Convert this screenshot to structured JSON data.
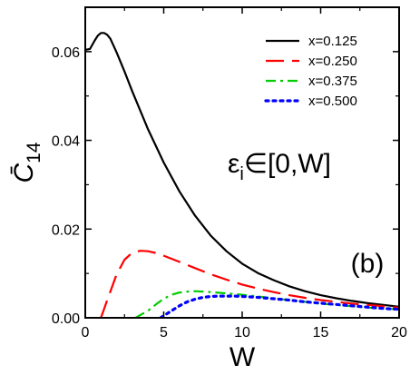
{
  "chart_data": {
    "type": "line",
    "xlabel": "W",
    "ylabel": "C̄",
    "ylabel_subscript": "14",
    "xlim": [
      0,
      20
    ],
    "ylim": [
      0,
      0.07
    ],
    "x_ticks": [
      0,
      5,
      10,
      15,
      20
    ],
    "x_tick_labels": [
      "0",
      "5",
      "10",
      "15",
      "20"
    ],
    "y_ticks": [
      0,
      0.02,
      0.04,
      0.06
    ],
    "y_tick_labels": [
      "0.00",
      "0.02",
      "0.04",
      "0.06"
    ],
    "grid": false,
    "legend_position": "top-right",
    "annotations": {
      "epsilon": {
        "base": "ε",
        "sub": "i",
        "rest": "∈[0,W]"
      },
      "panel": "(b)"
    },
    "series": [
      {
        "name": "x=0.125",
        "color": "#000000",
        "dash": "solid",
        "x": [
          0,
          0.3,
          0.6,
          0.8,
          1.0,
          1.2,
          1.4,
          1.6,
          2.0,
          2.5,
          3.0,
          4.0,
          5.0,
          6.0,
          7.0,
          8.0,
          9.0,
          10.0,
          11.0,
          12.0,
          13.0,
          14.0,
          15.0,
          16.0,
          17.0,
          18.0,
          19.0,
          20.0
        ],
        "y": [
          0.0604,
          0.0606,
          0.0625,
          0.0636,
          0.0642,
          0.0642,
          0.0638,
          0.0629,
          0.0598,
          0.0555,
          0.051,
          0.0425,
          0.035,
          0.0285,
          0.023,
          0.0185,
          0.015,
          0.0122,
          0.0101,
          0.0085,
          0.0071,
          0.006,
          0.0051,
          0.0044,
          0.0038,
          0.0033,
          0.0029,
          0.0025
        ]
      },
      {
        "name": "x=0.250",
        "color": "#ff0000",
        "dash": "long-dash",
        "x": [
          1.0,
          1.5,
          2.0,
          2.5,
          3.0,
          3.5,
          4.0,
          4.5,
          5.0,
          6.0,
          7.0,
          8.0,
          9.0,
          10.0,
          11.0,
          12.0,
          13.0,
          14.0,
          15.0,
          16.0,
          17.0,
          18.0,
          19.0,
          20.0
        ],
        "y": [
          0.0,
          0.005,
          0.0098,
          0.0131,
          0.0147,
          0.0151,
          0.015,
          0.0146,
          0.014,
          0.0126,
          0.0112,
          0.0098,
          0.0086,
          0.0075,
          0.0066,
          0.0058,
          0.0051,
          0.0045,
          0.004,
          0.0036,
          0.0032,
          0.0029,
          0.0026,
          0.0023
        ]
      },
      {
        "name": "x=0.375",
        "color": "#00cc00",
        "dash": "dash-dot",
        "x": [
          3.2,
          4.0,
          4.5,
          5.0,
          5.5,
          6.0,
          6.5,
          7.0,
          7.5,
          8.0,
          9.0,
          10.0,
          11.0,
          12.0,
          13.0,
          14.0,
          15.0,
          16.0,
          17.0,
          18.0,
          19.0,
          20.0
        ],
        "y": [
          0.0,
          0.0016,
          0.003,
          0.0043,
          0.0052,
          0.0057,
          0.0059,
          0.006,
          0.0059,
          0.0058,
          0.0055,
          0.0052,
          0.0048,
          0.0044,
          0.004,
          0.0036,
          0.0032,
          0.0029,
          0.0026,
          0.0023,
          0.0021,
          0.0019
        ]
      },
      {
        "name": "x=0.500",
        "color": "#0000ff",
        "dash": "dotted",
        "x": [
          4.8,
          5.5,
          6.0,
          6.5,
          7.0,
          7.5,
          8.0,
          8.5,
          9.0,
          9.5,
          10.0,
          11.0,
          12.0,
          13.0,
          14.0,
          15.0,
          16.0,
          17.0,
          18.0,
          19.0,
          20.0
        ],
        "y": [
          0.0,
          0.0016,
          0.0027,
          0.0036,
          0.0042,
          0.0046,
          0.0048,
          0.0049,
          0.0049,
          0.0049,
          0.0048,
          0.0046,
          0.0043,
          0.004,
          0.0036,
          0.0033,
          0.003,
          0.0027,
          0.0024,
          0.0021,
          0.0019
        ]
      }
    ]
  }
}
